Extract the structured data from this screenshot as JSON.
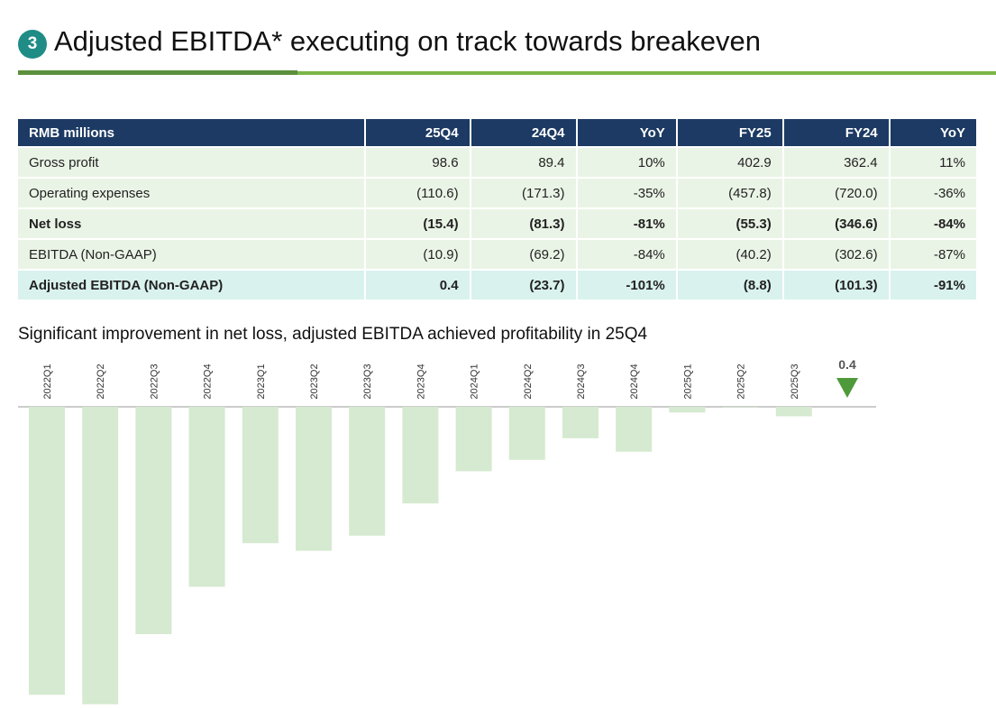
{
  "header": {
    "badge": "3",
    "title": "Adjusted EBITDA* executing on track towards breakeven"
  },
  "table": {
    "columns": [
      "RMB millions",
      "25Q4",
      "24Q4",
      "YoY",
      "FY25",
      "FY24",
      "YoY"
    ],
    "rows": [
      [
        "Gross profit",
        "98.6",
        "89.4",
        "10%",
        "402.9",
        "362.4",
        "11%"
      ],
      [
        "Operating expenses",
        "(110.6)",
        "(171.3)",
        "-35%",
        "(457.8)",
        "(720.0)",
        "-36%"
      ],
      [
        "Net loss",
        "(15.4)",
        "(81.3)",
        "-81%",
        "(55.3)",
        "(346.6)",
        "-84%"
      ],
      [
        "EBITDA (Non-GAAP)",
        "(10.9)",
        "(69.2)",
        "-84%",
        "(40.2)",
        "(302.6)",
        "-87%"
      ],
      [
        "Adjusted EBITDA (Non-GAAP)",
        "0.4",
        "(23.7)",
        "-101%",
        "(8.8)",
        "(101.3)",
        "-91%"
      ]
    ]
  },
  "chart_data": {
    "type": "bar",
    "title": "Significant improvement in net loss, adjusted EBITDA achieved profitability in 25Q4",
    "categories": [
      "2022Q1",
      "2022Q2",
      "2022Q3",
      "2022Q4",
      "2023Q1",
      "2023Q2",
      "2023Q3",
      "2023Q4",
      "2024Q1",
      "2024Q2",
      "2024Q3",
      "2024Q4",
      "2025Q1",
      "2025Q2",
      "2025Q3",
      null
    ],
    "values": [
      -152,
      -157,
      -120,
      -95,
      -72,
      -76,
      -68,
      -51,
      -34,
      -28,
      -16.6,
      -23.7,
      -3,
      -0.3,
      -5,
      0.4
    ],
    "color": "#d5ead0",
    "highlight_color": "#4e9a3a"
  }
}
